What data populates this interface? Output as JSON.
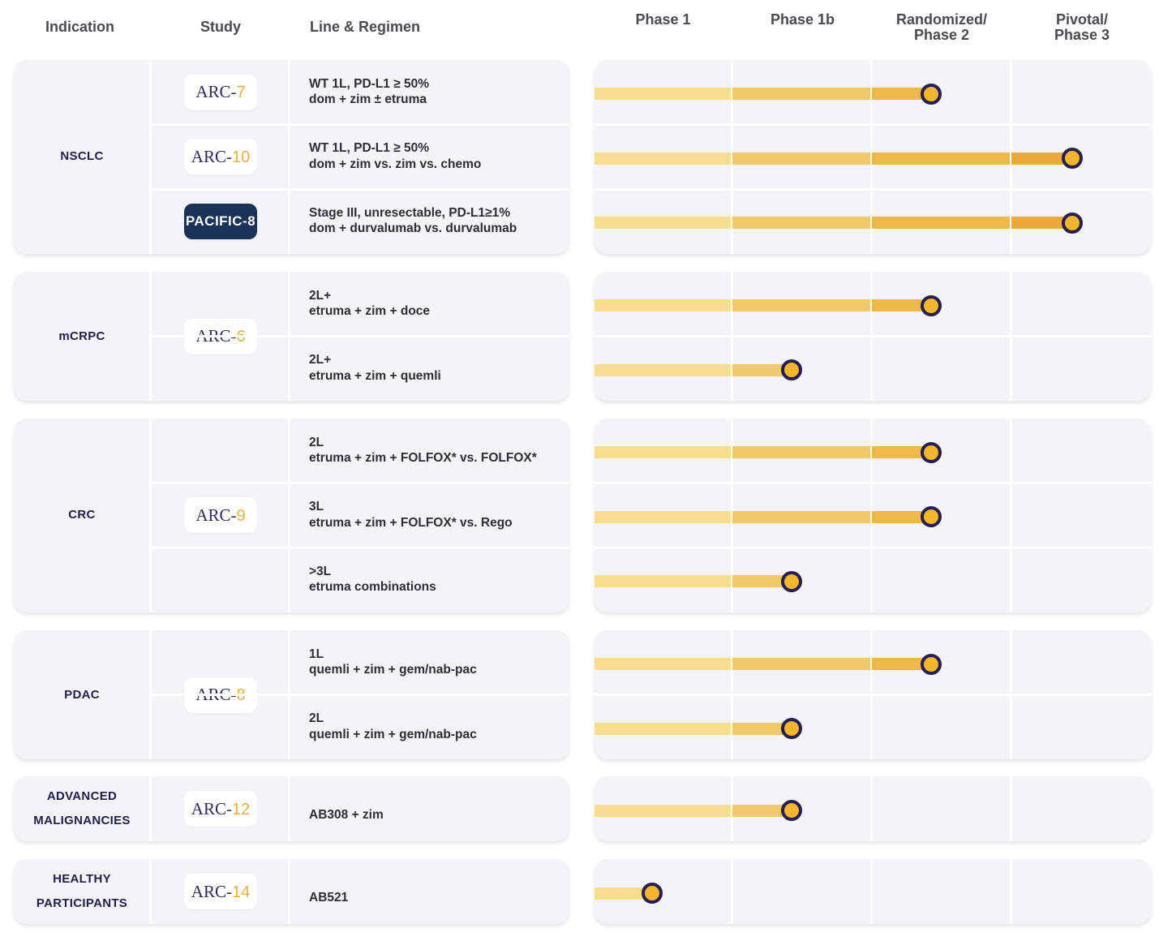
{
  "headers": {
    "indication": "Indication",
    "study": "Study",
    "line_regimen": "Line & Regimen",
    "phase1": "Phase 1",
    "phase1b": "Phase 1b",
    "randomized_line1": "Randomized/",
    "randomized_line2": "Phase 2",
    "pivotal_line1": "Pivotal/",
    "pivotal_line2": "Phase 3"
  },
  "colors": {
    "phase1_bar": "#f7de8e",
    "phase1b_bar": "#f2c96a",
    "phase2_bar": "#efb94a",
    "phase3_bar": "#eca83a",
    "dot_fill": "#f3b62e",
    "dot_ring": "#25204f",
    "study_prefix": "#2c2d5c",
    "study_number": "#e8b043",
    "pacific_bg": "#1a3256"
  },
  "groups": [
    {
      "indication_line1": "NSCLC",
      "indication_line2": "",
      "studies": [
        "ARC-7",
        "ARC-10",
        "PACIFIC-8"
      ],
      "rows": [
        {
          "line1": "WT 1L, PD-L1 ≥ 50%",
          "line2": "dom + zim ± etruma",
          "phase_progress": 2.43
        },
        {
          "line1": "WT 1L, PD-L1 ≥ 50%",
          "line2": "dom + zim vs. zim vs. chemo",
          "phase_progress": 3.44
        },
        {
          "line1": "Stage III, unresectable, PD-L1≥1%",
          "line2": "dom + durvalumab vs. durvalumab",
          "phase_progress": 3.44
        }
      ]
    },
    {
      "indication_line1": "mCRPC",
      "indication_line2": "",
      "studies": [
        "ARC-6"
      ],
      "rows": [
        {
          "line1": "2L+",
          "line2": "etruma + zim + doce",
          "phase_progress": 2.43
        },
        {
          "line1": "2L+",
          "line2": "etruma + zim + quemli",
          "phase_progress": 1.43
        }
      ]
    },
    {
      "indication_line1": "CRC",
      "indication_line2": "",
      "studies": [
        "ARC-9"
      ],
      "rows": [
        {
          "line1": "2L",
          "line2": "etruma + zim + FOLFOX* vs. FOLFOX*",
          "phase_progress": 2.43
        },
        {
          "line1": "3L",
          "line2": "etruma + zim + FOLFOX* vs. Rego",
          "phase_progress": 2.43
        },
        {
          "line1": ">3L",
          "line2": "etruma combinations",
          "phase_progress": 1.43
        }
      ]
    },
    {
      "indication_line1": "PDAC",
      "indication_line2": "",
      "studies": [
        "ARC-8"
      ],
      "rows": [
        {
          "line1": "1L",
          "line2": "quemli + zim + gem/nab-pac",
          "phase_progress": 2.43
        },
        {
          "line1": "2L",
          "line2": "quemli + zim + gem/nab-pac",
          "phase_progress": 1.43
        }
      ]
    },
    {
      "indication_line1": "ADVANCED",
      "indication_line2": "MALIGNANCIES",
      "studies": [
        "ARC-12"
      ],
      "rows": [
        {
          "line1": "",
          "line2": "AB308 + zim",
          "phase_progress": 1.43
        }
      ]
    },
    {
      "indication_line1": "HEALTHY",
      "indication_line2": "PARTICIPANTS",
      "studies": [
        "ARC-14"
      ],
      "rows": [
        {
          "line1": "",
          "line2": "AB521",
          "phase_progress": 0.42
        }
      ]
    }
  ]
}
